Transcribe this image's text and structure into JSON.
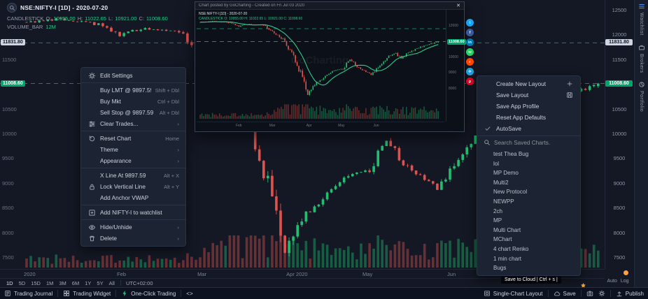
{
  "colors": {
    "bg": "#141824",
    "up": "#22bd72",
    "down": "#e1524d",
    "level": "#00c076",
    "accent": "#2bc98a"
  },
  "legend": {
    "symbol": "NSE:NIFTY-I [1D] - 2020-07-20",
    "series_type": "CANDLESTICK",
    "o_label": "O:",
    "o": "10955.00",
    "h_label": "H:",
    "h": "11022.65",
    "l_label": "L:",
    "l": "10921.00",
    "c_label": "C:",
    "c": "11008.60",
    "volume_label": "VOLUME_BAR",
    "volume_value": "12M"
  },
  "price_axis": {
    "ticks": [
      {
        "label": "12500",
        "price": 12500
      },
      {
        "label": "12000",
        "price": 12000
      },
      {
        "label": "11500",
        "price": 11500
      },
      {
        "label": "10500",
        "price": 10500
      },
      {
        "label": "10000",
        "price": 10000
      },
      {
        "label": "9500",
        "price": 9500
      },
      {
        "label": "9000",
        "price": 9000
      },
      {
        "label": "8500",
        "price": 8500
      },
      {
        "label": "8000",
        "price": 8000
      },
      {
        "label": "7500",
        "price": 7500
      }
    ],
    "tag_upper": "11831.80",
    "tag_lower": "11008.60"
  },
  "time_axis": {
    "labels": [
      {
        "label": "2020",
        "day": 1
      },
      {
        "label": "Feb",
        "day": 23
      },
      {
        "label": "Mar",
        "day": 42
      },
      {
        "label": "Apr 2020",
        "day": 63
      },
      {
        "label": "May",
        "day": 81
      },
      {
        "label": "Jun",
        "day": 101
      }
    ]
  },
  "chart_data": {
    "type": "candlestick",
    "symbol": "NSE:NIFTY-I",
    "interval": "1D",
    "date": "2020-07-20",
    "last_candle": {
      "open": 10955.0,
      "high": 11022.65,
      "low": 10921.0,
      "close": 11008.6
    },
    "levels": [
      11831.8,
      11008.6
    ],
    "price_range": [
      7500,
      12500
    ],
    "days": 136,
    "anchors": [
      [
        0,
        12250
      ],
      [
        8,
        12320
      ],
      [
        17,
        12200
      ],
      [
        22,
        11990
      ],
      [
        28,
        12130
      ],
      [
        36,
        12060
      ],
      [
        42,
        11540
      ],
      [
        47,
        11150
      ],
      [
        52,
        10250
      ],
      [
        55,
        9550
      ],
      [
        58,
        8680
      ],
      [
        61,
        7610
      ],
      [
        65,
        8300
      ],
      [
        70,
        8680
      ],
      [
        76,
        9130
      ],
      [
        81,
        9270
      ],
      [
        85,
        9850
      ],
      [
        89,
        9420
      ],
      [
        93,
        9150
      ],
      [
        97,
        8870
      ],
      [
        102,
        9450
      ],
      [
        107,
        10050
      ],
      [
        111,
        10250
      ],
      [
        114,
        9930
      ],
      [
        118,
        10300
      ],
      [
        123,
        10550
      ],
      [
        128,
        10790
      ],
      [
        135,
        11008.6
      ]
    ],
    "volume_series_label": "VOLUME_BAR 12M"
  },
  "context_menu": {
    "items": [
      {
        "label": "Edit Settings",
        "right": ""
      },
      {
        "label": "Buy LMT @ 9897.59",
        "right": "Shift + Dbl"
      },
      {
        "label": "Buy Mkt",
        "right": "Ctrl + Dbl"
      },
      {
        "label": "Sell Stop @ 9897.59",
        "right": "Alt + Dbl"
      },
      {
        "label": "Clear Trades...",
        "right": "›"
      },
      {
        "label": "Reset Chart",
        "right": "Home"
      },
      {
        "label": "Theme",
        "right": "›"
      },
      {
        "label": "Appearance",
        "right": "›"
      },
      {
        "label": "X Line At 9897.59",
        "right": "Alt + X"
      },
      {
        "label": "Lock Vertical Line",
        "right": "Alt + Y"
      },
      {
        "label": "Add Anchor VWAP",
        "right": ""
      },
      {
        "label": "Add NIFTY-I to watchlist",
        "right": ""
      },
      {
        "label": "Hide/Unhide",
        "right": "›"
      },
      {
        "label": "Delete",
        "right": "›"
      }
    ]
  },
  "layout_menu": {
    "items": [
      {
        "label": "Create New Layout"
      },
      {
        "label": "Save Layout"
      },
      {
        "label": "Save App Profile"
      },
      {
        "label": "Reset App Defaults"
      },
      {
        "label": "AutoSave"
      }
    ],
    "search_placeholder": "Search Saved Charts.",
    "saved": [
      "test Thea Bug",
      "lol",
      "MP Demo",
      "Multi2",
      "New Protocol",
      "NEWPP",
      "2ch",
      "MP",
      "Multi Chart",
      "MChart",
      "4 chart Renko",
      "1 min chart",
      "Bugs"
    ]
  },
  "popup": {
    "title": "Chart posted by GoCharting - Created on Fri Jul 03 2020",
    "close_glyph": "✕",
    "legend_line1": "NSE:NIFTY-I [1D] - 2020-07-20",
    "legend_line2": "CANDLESTICK O: 10955.00 H: 11022.65 L: 10921.00 C: 11008.60",
    "watermark": "GoCharting",
    "tag": "11008.60",
    "axis_ticks": [
      {
        "label": "12000",
        "price": 12000
      },
      {
        "label": "11000",
        "price": 11000
      },
      {
        "label": "10000",
        "price": 10000
      },
      {
        "label": "9000",
        "price": 9000
      },
      {
        "label": "8000",
        "price": 8000
      }
    ],
    "time_labels": [
      {
        "label": "Feb",
        "day": 23
      },
      {
        "label": "Mar",
        "day": 42
      },
      {
        "label": "Apr",
        "day": 63
      },
      {
        "label": "May",
        "day": 81
      },
      {
        "label": "Jun",
        "day": 101
      }
    ]
  },
  "share": [
    {
      "name": "twitter",
      "color": "#1da1f2",
      "glyph": "t"
    },
    {
      "name": "facebook",
      "color": "#3b5998",
      "glyph": "f"
    },
    {
      "name": "linkedin",
      "color": "#0077b5",
      "glyph": "in"
    },
    {
      "name": "whatsapp",
      "color": "#25d366",
      "glyph": "w"
    },
    {
      "name": "reddit",
      "color": "#ff4500",
      "glyph": "r"
    },
    {
      "name": "telegram",
      "color": "#229ed9",
      "glyph": "✈"
    },
    {
      "name": "pinterest",
      "color": "#e60023",
      "glyph": "p"
    }
  ],
  "toolbar": {
    "timeframes": [
      "1D",
      "5D",
      "15D",
      "1M",
      "3M",
      "6M",
      "1Y",
      "5Y",
      "All"
    ],
    "timezone": "UTC+02:00",
    "right": [
      "Auto",
      "Log"
    ]
  },
  "status_bar": {
    "left": [
      {
        "label": "Trading Journal"
      },
      {
        "label": "Trading Widget"
      },
      {
        "label": "One-Click Trading"
      },
      {
        "label": "<>"
      }
    ],
    "right": [
      {
        "label": "Single-Chart Layout"
      },
      {
        "label": "Save"
      },
      {
        "label": "Publish"
      }
    ]
  },
  "tooltip": "Save to Cloud | Ctrl + s |",
  "side_tabs": [
    {
      "label": "Watchlist"
    },
    {
      "label": "Brokers"
    },
    {
      "label": "Portfolio"
    }
  ]
}
